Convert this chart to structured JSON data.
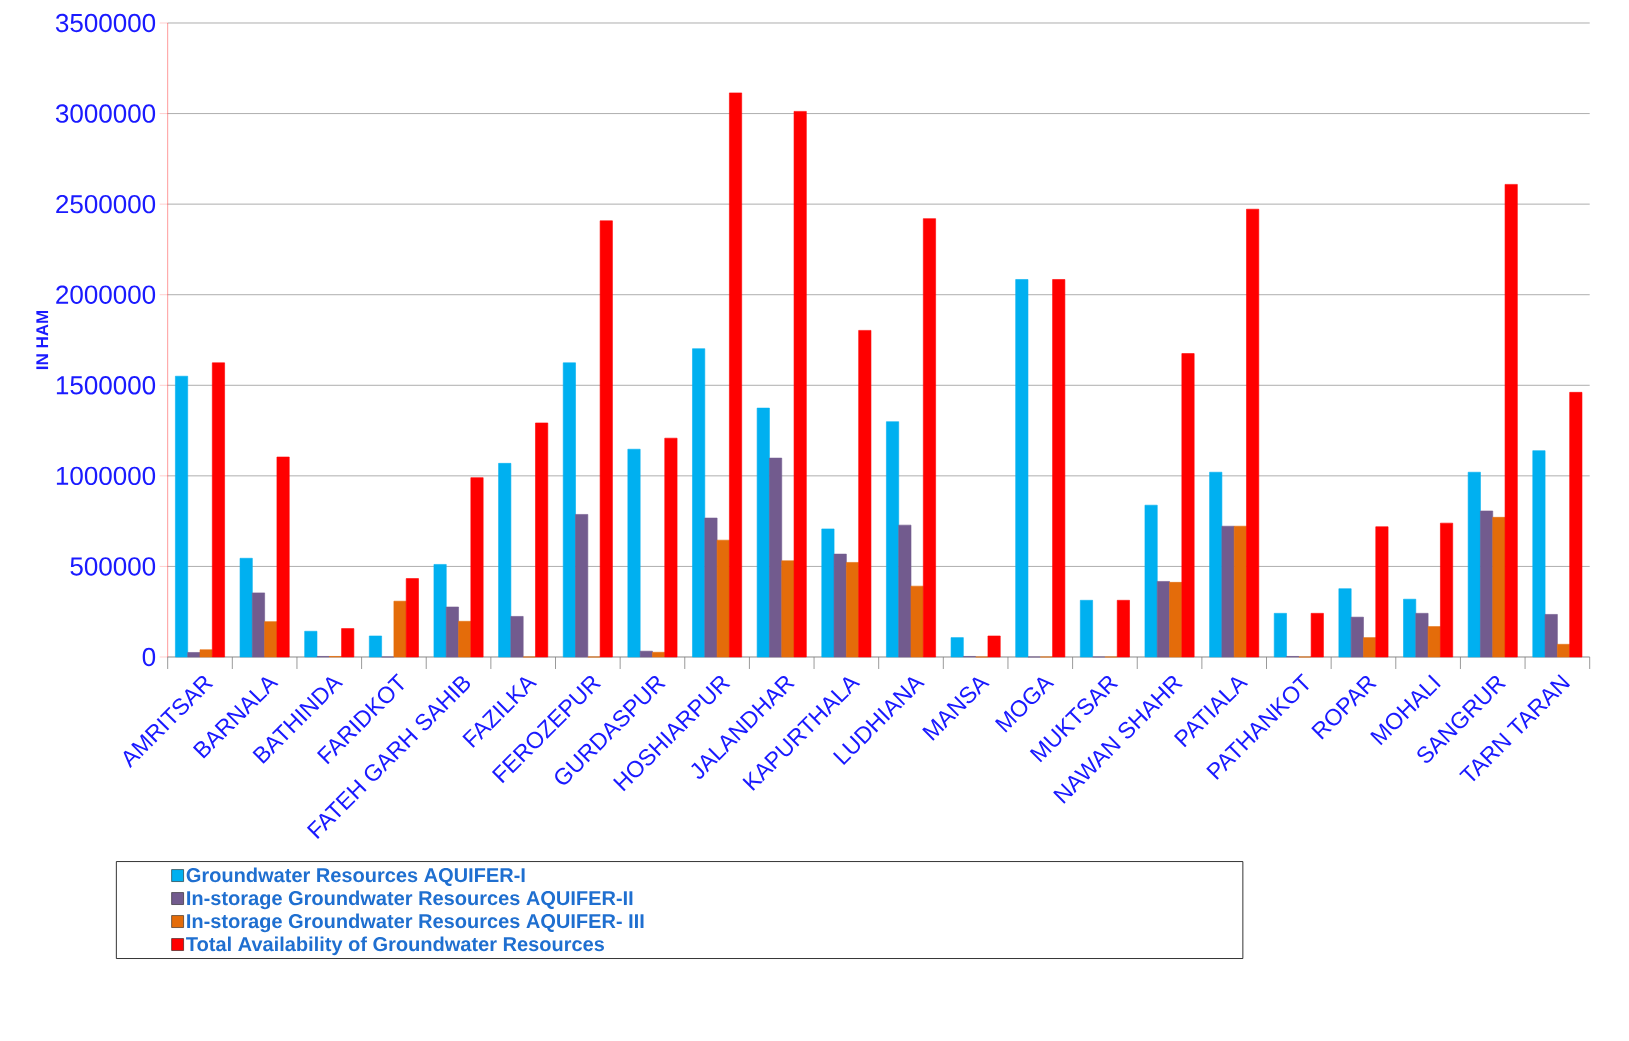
{
  "chart_data": {
    "type": "bar",
    "ylabel": "IN HAM",
    "categories": [
      "AMRITSAR",
      "BARNALA",
      "BATHINDA",
      "FARIDKOT",
      "FATEH GARH SAHIB",
      "FAZILKA",
      "FEROZEPUR",
      "GURDASPUR",
      "HOSHIARPUR",
      "JALANDHAR",
      "KAPURTHALA",
      "LUDHIANA",
      "MANSA",
      "MOGA",
      "MUKTSAR",
      "NAWAN SHAHR",
      "PATIALA",
      "PATHANKOT",
      "ROPAR",
      "MOHALI",
      "SANGRUR",
      "TARN TARAN"
    ],
    "series": [
      {
        "name": "Groundwater Resources AQUIFER-I",
        "color": "#00b0f0",
        "values": [
          1550000,
          545000,
          142000,
          116000,
          511000,
          1069000,
          1624000,
          1147000,
          1702000,
          1374000,
          707000,
          1299000,
          107000,
          2084000,
          313000,
          838000,
          1020000,
          241000,
          377000,
          319000,
          1020000,
          1139000
        ]
      },
      {
        "name": "In-storage Groundwater Resources AQUIFER-II",
        "color": "#725b8e",
        "values": [
          25000,
          354000,
          3000,
          0,
          276000,
          224000,
          787000,
          32000,
          767000,
          1098000,
          568000,
          728000,
          3000,
          0,
          0,
          417000,
          722000,
          3000,
          220000,
          241000,
          806000,
          235000
        ]
      },
      {
        "name": "In-storage Groundwater Resources AQUIFER- III",
        "color": "#e46c0a",
        "values": [
          40000,
          195000,
          3000,
          308000,
          197000,
          0,
          0,
          26000,
          645000,
          531000,
          522000,
          391000,
          0,
          0,
          0,
          412000,
          722000,
          0,
          107000,
          168000,
          771000,
          70000
        ]
      },
      {
        "name": "Total Availability of Groundwater Resources",
        "color": "#ff0000",
        "values": [
          1624000,
          1104000,
          157000,
          433000,
          990000,
          1292000,
          2408000,
          1208000,
          3114000,
          3012000,
          1803000,
          2420000,
          116000,
          2084000,
          313000,
          1675000,
          2472000,
          241000,
          719000,
          739000,
          2609000,
          1461000
        ]
      }
    ],
    "ylim": [
      0,
      3500000
    ],
    "yticks": [
      0,
      500000,
      1000000,
      1500000,
      2000000,
      2500000,
      3000000,
      3500000
    ],
    "grid": "y",
    "legend": "bottom"
  }
}
